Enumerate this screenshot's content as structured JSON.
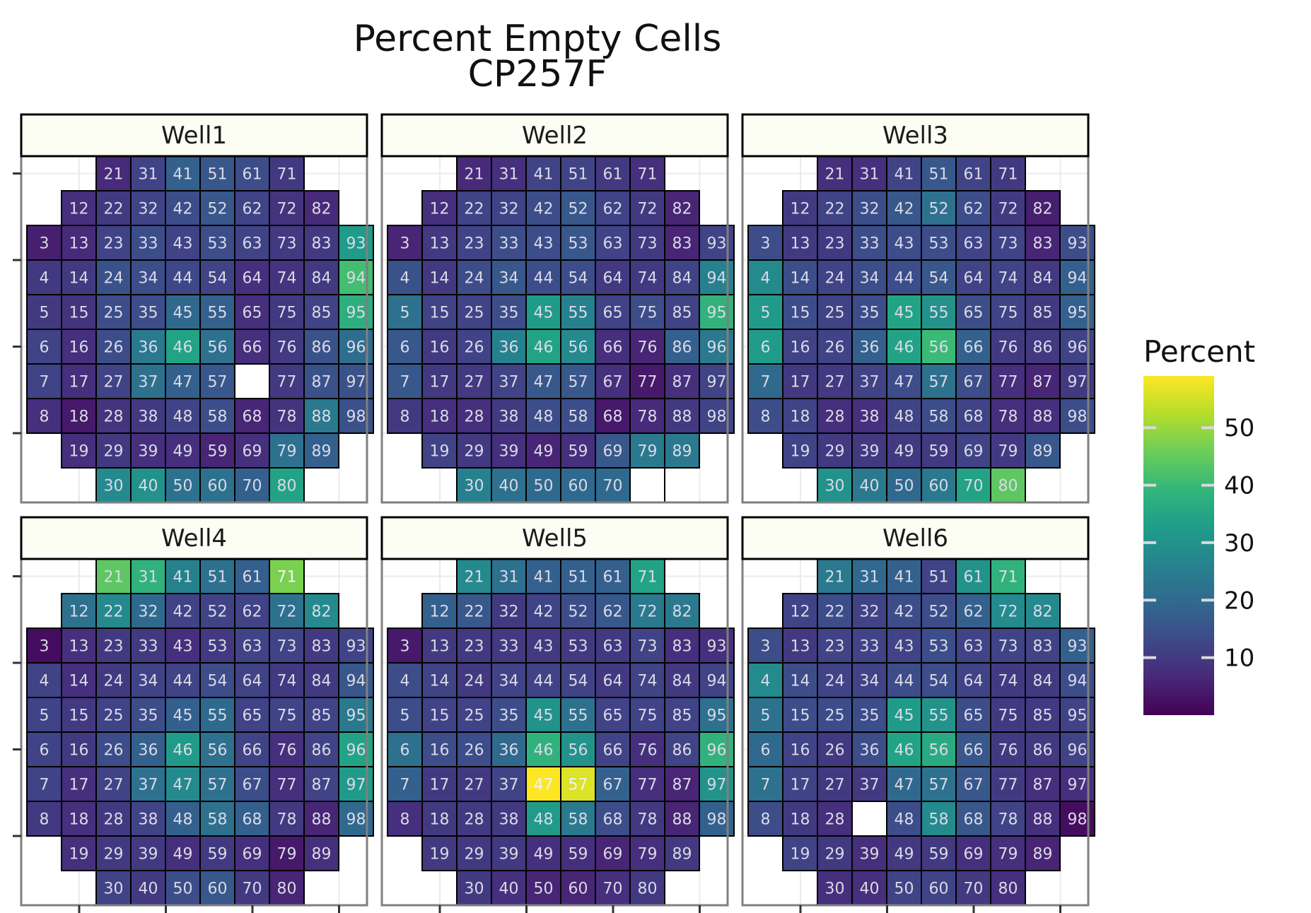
{
  "chart_data": {
    "type": "heatmap",
    "title": "Percent Empty Cells",
    "subtitle": "CP257F",
    "legend": {
      "title": "Percent",
      "ticks": [
        "10",
        "20",
        "30",
        "40",
        "50"
      ],
      "tick_values": [
        10,
        20,
        30,
        40,
        50
      ],
      "range": [
        0,
        59
      ],
      "placement": "right",
      "palette": [
        "#440154",
        "#482878",
        "#3e4989",
        "#31688e",
        "#26828e",
        "#1f9e89",
        "#35b779",
        "#6ece58",
        "#b5de2b",
        "#fde725"
      ]
    },
    "grid": {
      "cols": 10,
      "rows": 10,
      "well_ids": [
        [
          null,
          null,
          21,
          31,
          41,
          51,
          61,
          71,
          null,
          null
        ],
        [
          null,
          12,
          22,
          32,
          42,
          52,
          62,
          72,
          82,
          null
        ],
        [
          3,
          13,
          23,
          33,
          43,
          53,
          63,
          73,
          83,
          93
        ],
        [
          4,
          14,
          24,
          34,
          44,
          54,
          64,
          74,
          84,
          94
        ],
        [
          5,
          15,
          25,
          35,
          45,
          55,
          65,
          75,
          85,
          95
        ],
        [
          6,
          16,
          26,
          36,
          46,
          56,
          66,
          76,
          86,
          96
        ],
        [
          7,
          17,
          27,
          37,
          47,
          57,
          67,
          77,
          87,
          97
        ],
        [
          8,
          18,
          28,
          38,
          48,
          58,
          68,
          78,
          88,
          98
        ],
        [
          null,
          19,
          29,
          39,
          49,
          59,
          69,
          79,
          89,
          null
        ],
        [
          null,
          null,
          30,
          40,
          50,
          60,
          70,
          80,
          null,
          null
        ]
      ]
    },
    "panels": [
      {
        "name": "Well1",
        "values": [
          [
            null,
            null,
            7,
            12,
            18,
            16,
            14,
            10,
            null,
            null
          ],
          [
            null,
            8,
            10,
            12,
            14,
            16,
            12,
            9,
            7,
            null
          ],
          [
            5,
            7,
            12,
            14,
            12,
            14,
            12,
            10,
            10,
            32
          ],
          [
            10,
            10,
            15,
            14,
            13,
            12,
            8,
            9,
            10,
            41
          ],
          [
            10,
            9,
            14,
            14,
            20,
            18,
            8,
            10,
            12,
            37
          ],
          [
            12,
            8,
            14,
            24,
            34,
            22,
            8,
            10,
            15,
            21
          ],
          [
            12,
            8,
            12,
            22,
            18,
            16,
            null,
            10,
            15,
            15
          ],
          [
            8,
            4,
            9,
            10,
            12,
            14,
            6,
            9,
            24,
            15
          ],
          [
            null,
            8,
            10,
            8,
            8,
            6,
            8,
            22,
            18,
            null
          ],
          [
            null,
            null,
            28,
            30,
            22,
            22,
            18,
            34,
            null,
            null
          ]
        ]
      },
      {
        "name": "Well2",
        "values": [
          [
            null,
            null,
            7,
            8,
            12,
            12,
            10,
            8,
            null,
            null
          ],
          [
            null,
            8,
            12,
            12,
            14,
            16,
            12,
            10,
            6,
            null
          ],
          [
            6,
            10,
            12,
            14,
            14,
            16,
            12,
            10,
            6,
            12
          ],
          [
            15,
            10,
            14,
            16,
            14,
            14,
            10,
            10,
            12,
            26
          ],
          [
            22,
            12,
            12,
            14,
            32,
            26,
            12,
            14,
            12,
            38
          ],
          [
            16,
            10,
            12,
            26,
            34,
            28,
            8,
            6,
            18,
            24
          ],
          [
            16,
            10,
            10,
            12,
            16,
            16,
            8,
            4,
            8,
            12
          ],
          [
            10,
            8,
            8,
            10,
            14,
            14,
            4,
            7,
            10,
            12
          ],
          [
            null,
            12,
            10,
            8,
            6,
            8,
            16,
            24,
            24,
            null
          ],
          [
            null,
            null,
            26,
            22,
            20,
            20,
            20,
            null,
            null,
            null
          ]
        ]
      },
      {
        "name": "Well3",
        "values": [
          [
            null,
            null,
            8,
            8,
            12,
            16,
            12,
            10,
            null,
            null
          ],
          [
            null,
            10,
            12,
            14,
            16,
            22,
            14,
            10,
            5,
            null
          ],
          [
            14,
            10,
            10,
            14,
            14,
            14,
            12,
            12,
            6,
            14
          ],
          [
            28,
            14,
            12,
            14,
            14,
            16,
            12,
            12,
            10,
            18
          ],
          [
            32,
            14,
            12,
            14,
            34,
            30,
            14,
            12,
            10,
            18
          ],
          [
            32,
            12,
            12,
            18,
            34,
            40,
            18,
            10,
            10,
            12
          ],
          [
            20,
            10,
            10,
            12,
            14,
            22,
            14,
            8,
            6,
            10
          ],
          [
            14,
            12,
            8,
            8,
            12,
            14,
            12,
            8,
            8,
            14
          ],
          [
            null,
            12,
            10,
            10,
            10,
            10,
            12,
            10,
            16,
            null
          ],
          [
            null,
            null,
            30,
            24,
            20,
            24,
            34,
            44,
            null,
            null
          ]
        ]
      },
      {
        "name": "Well4",
        "values": [
          [
            null,
            null,
            44,
            38,
            26,
            22,
            18,
            47,
            null,
            null
          ],
          [
            null,
            22,
            28,
            20,
            12,
            12,
            12,
            22,
            28,
            null
          ],
          [
            2,
            8,
            10,
            10,
            8,
            10,
            12,
            12,
            10,
            12
          ],
          [
            12,
            8,
            10,
            12,
            12,
            14,
            12,
            10,
            10,
            16
          ],
          [
            12,
            10,
            12,
            14,
            18,
            20,
            12,
            12,
            12,
            24
          ],
          [
            12,
            10,
            14,
            18,
            32,
            22,
            12,
            8,
            12,
            34
          ],
          [
            12,
            8,
            12,
            22,
            28,
            22,
            14,
            8,
            12,
            32
          ],
          [
            10,
            8,
            10,
            12,
            18,
            22,
            18,
            10,
            6,
            20
          ],
          [
            null,
            8,
            10,
            10,
            8,
            10,
            8,
            4,
            8,
            null
          ],
          [
            null,
            null,
            12,
            10,
            14,
            16,
            10,
            6,
            null,
            null
          ]
        ]
      },
      {
        "name": "Well5",
        "values": [
          [
            null,
            null,
            28,
            22,
            18,
            18,
            18,
            34,
            null,
            null
          ],
          [
            null,
            18,
            16,
            10,
            12,
            14,
            16,
            24,
            24,
            null
          ],
          [
            4,
            10,
            10,
            10,
            10,
            10,
            10,
            12,
            8,
            8
          ],
          [
            14,
            12,
            10,
            12,
            12,
            12,
            10,
            12,
            10,
            12
          ],
          [
            14,
            12,
            12,
            14,
            30,
            22,
            12,
            12,
            12,
            22
          ],
          [
            22,
            14,
            14,
            20,
            38,
            30,
            12,
            8,
            12,
            38
          ],
          [
            18,
            10,
            10,
            12,
            59,
            56,
            18,
            8,
            6,
            30
          ],
          [
            8,
            10,
            10,
            10,
            32,
            24,
            14,
            10,
            6,
            18
          ],
          [
            null,
            10,
            10,
            10,
            8,
            8,
            6,
            8,
            10,
            null
          ],
          [
            null,
            null,
            10,
            8,
            6,
            6,
            8,
            10,
            null,
            null
          ]
        ]
      },
      {
        "name": "Well6",
        "values": [
          [
            null,
            null,
            24,
            20,
            18,
            12,
            30,
            38,
            null,
            null
          ],
          [
            null,
            12,
            14,
            12,
            14,
            14,
            18,
            28,
            28,
            null
          ],
          [
            14,
            10,
            12,
            12,
            12,
            14,
            12,
            12,
            12,
            18
          ],
          [
            28,
            14,
            12,
            12,
            14,
            14,
            12,
            10,
            10,
            14
          ],
          [
            22,
            14,
            14,
            14,
            32,
            30,
            14,
            10,
            10,
            12
          ],
          [
            20,
            12,
            10,
            14,
            34,
            36,
            16,
            10,
            10,
            12
          ],
          [
            22,
            12,
            10,
            10,
            20,
            22,
            16,
            10,
            8,
            8
          ],
          [
            14,
            10,
            8,
            null,
            14,
            28,
            16,
            12,
            8,
            2
          ],
          [
            null,
            12,
            10,
            8,
            10,
            10,
            8,
            8,
            6,
            null
          ],
          [
            null,
            null,
            8,
            8,
            12,
            12,
            10,
            8,
            null,
            null
          ]
        ]
      }
    ]
  }
}
